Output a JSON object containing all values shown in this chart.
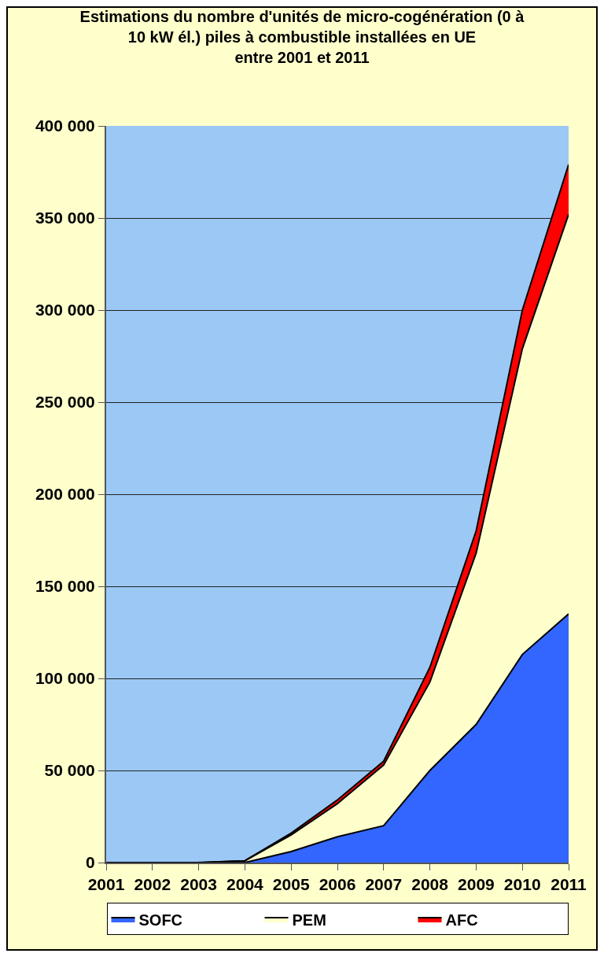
{
  "chart_data": {
    "type": "area",
    "title": "Estimations du nombre d'unités de micro-cogénération (0 à\n10 kW él.) piles à combustible installées en UE\nentre 2001 et 2011",
    "stacked": true,
    "categories": [
      "2001",
      "2002",
      "2003",
      "2004",
      "2005",
      "2006",
      "2007",
      "2008",
      "2009",
      "2010",
      "2011"
    ],
    "series": [
      {
        "name": "SOFC",
        "color": "#3366ff",
        "values": [
          0,
          0,
          0,
          0,
          6000,
          14000,
          20000,
          50000,
          75000,
          113000,
          135000
        ]
      },
      {
        "name": "PEM",
        "color": "#ffffcc",
        "values": [
          0,
          0,
          0,
          1000,
          9000,
          18000,
          33000,
          48000,
          93000,
          166000,
          217000
        ]
      },
      {
        "name": "AFC",
        "color": "#ff0000",
        "values": [
          0,
          0,
          0,
          0,
          1000,
          2000,
          2000,
          8000,
          12000,
          21000,
          27000
        ]
      }
    ],
    "ylim": [
      0,
      400000
    ],
    "yticks": [
      {
        "value": 0,
        "label": "0"
      },
      {
        "value": 50000,
        "label": "50 000"
      },
      {
        "value": 100000,
        "label": "100 000"
      },
      {
        "value": 150000,
        "label": "150 000"
      },
      {
        "value": 200000,
        "label": "200 000"
      },
      {
        "value": 250000,
        "label": "250 000"
      },
      {
        "value": 300000,
        "label": "300 000"
      },
      {
        "value": 350000,
        "label": "350 000"
      },
      {
        "value": 400000,
        "label": "400 000"
      }
    ],
    "grid": "y",
    "legend": "bottom",
    "marker": "none",
    "line_style": "solid"
  }
}
